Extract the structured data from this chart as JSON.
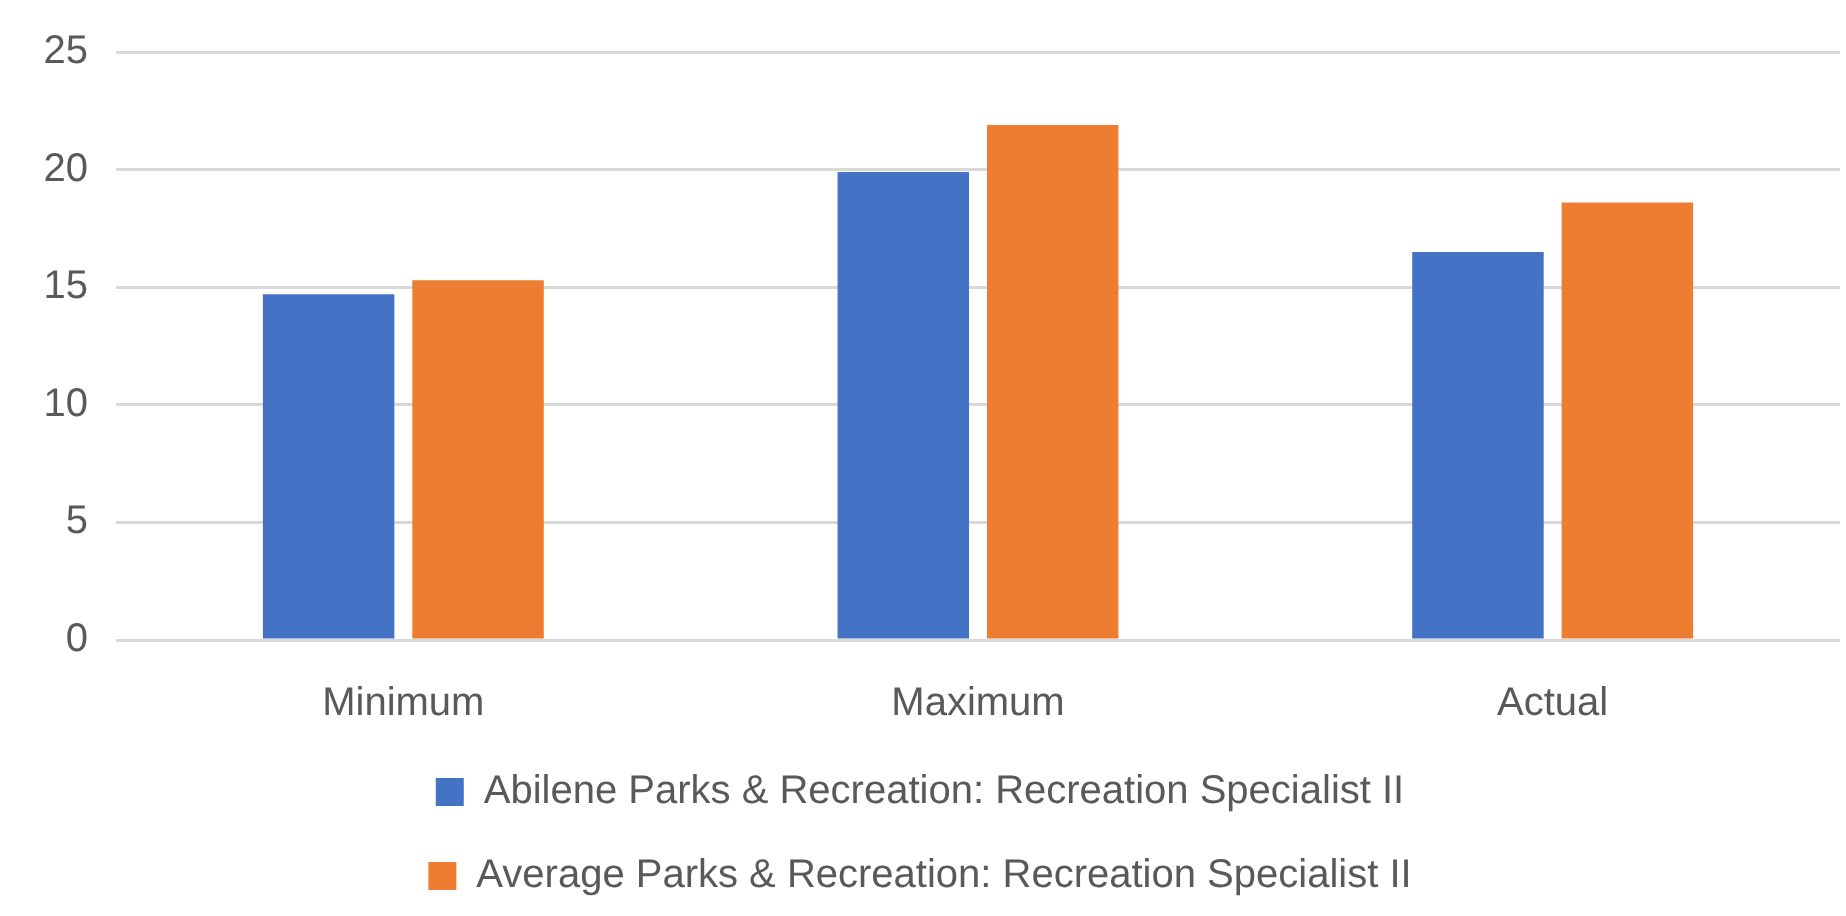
{
  "chart_data": {
    "type": "bar",
    "categories": [
      "Minimum",
      "Maximum",
      "Actual"
    ],
    "series": [
      {
        "name": "Abilene Parks & Recreation: Recreation Specialist II",
        "color": "#4472c4",
        "values": [
          14.7,
          19.9,
          16.5
        ]
      },
      {
        "name": "Average Parks & Recreation: Recreation Specialist II",
        "color": "#ed7d31",
        "values": [
          15.3,
          21.9,
          18.6
        ]
      }
    ],
    "ylim": [
      0,
      25
    ],
    "yticks": [
      0,
      5,
      10,
      15,
      20,
      25
    ],
    "grid": "y",
    "legend": "bottom"
  }
}
